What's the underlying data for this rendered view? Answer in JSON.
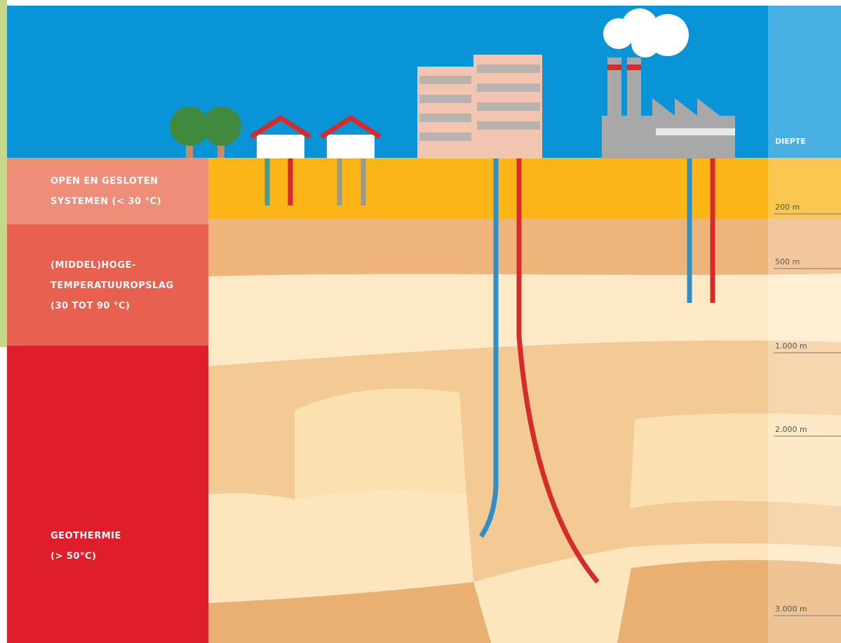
{
  "depth_header": "DIEPTE",
  "zones": [
    {
      "lines": [
        "OPEN EN GESLOTEN",
        "SYSTEMEN (< 30 °C)"
      ]
    },
    {
      "lines": [
        "(MIDDEL)HOGE-",
        "TEMPERATUUROPSLAG",
        "(30 TOT 90 °C)"
      ]
    },
    {
      "lines": [
        "GEOTHERMIE",
        "(> 50°C)"
      ]
    }
  ],
  "depths": [
    "200 m",
    "500 m",
    "1.000 m",
    "2.000 m",
    "3.000 m"
  ]
}
